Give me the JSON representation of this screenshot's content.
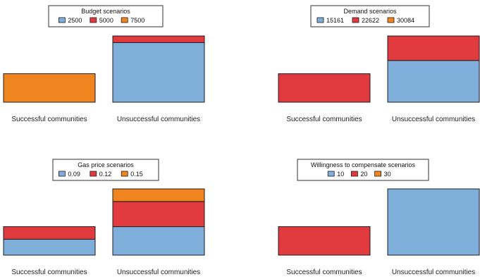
{
  "palette": {
    "blue": "#7eaed9",
    "red": "#e03a3e",
    "orange": "#f0841f"
  },
  "chart_data": [
    {
      "type": "bar",
      "stacked": true,
      "legend_title": "Budget scenarios",
      "legend_placement": "top-center",
      "categories": [
        "Successful communities",
        "Unsuccessful communities"
      ],
      "series": [
        {
          "name": "2500",
          "color": "#7eaed9",
          "values": [
            0,
            0.9
          ]
        },
        {
          "name": "5000",
          "color": "#e03a3e",
          "values": [
            0,
            0.1
          ]
        },
        {
          "name": "7500",
          "color": "#f0841f",
          "values": [
            0.43,
            0
          ]
        }
      ],
      "ylim": [
        0,
        1
      ]
    },
    {
      "type": "bar",
      "stacked": true,
      "legend_title": "Demand scenarios",
      "legend_placement": "top-center",
      "categories": [
        "Successful communities",
        "Unsuccessful communities"
      ],
      "series": [
        {
          "name": "15161",
          "color": "#7eaed9",
          "values": [
            0,
            0.63
          ]
        },
        {
          "name": "22622",
          "color": "#e03a3e",
          "values": [
            0.43,
            0.37
          ]
        },
        {
          "name": "30084",
          "color": "#f0841f",
          "values": [
            0,
            0
          ]
        }
      ],
      "ylim": [
        0,
        1
      ]
    },
    {
      "type": "bar",
      "stacked": true,
      "legend_title": "Gas price scenarios",
      "legend_placement": "top-center",
      "categories": [
        "Successful communities",
        "Unsuccessful communities"
      ],
      "series": [
        {
          "name": "0.09",
          "color": "#7eaed9",
          "values": [
            0.24,
            0.43
          ]
        },
        {
          "name": "0.12",
          "color": "#e03a3e",
          "values": [
            0.19,
            0.38
          ]
        },
        {
          "name": "0.15",
          "color": "#f0841f",
          "values": [
            0,
            0.19
          ]
        }
      ],
      "ylim": [
        0,
        1
      ]
    },
    {
      "type": "bar",
      "stacked": true,
      "legend_title": "Willingness to compensate scenarios",
      "legend_placement": "top-center",
      "categories": [
        "Successful communities",
        "Unsuccessful communities"
      ],
      "series": [
        {
          "name": "10",
          "color": "#7eaed9",
          "values": [
            0,
            1.0
          ]
        },
        {
          "name": "20",
          "color": "#e03a3e",
          "values": [
            0.43,
            0
          ]
        },
        {
          "name": "30",
          "color": "#f0841f",
          "values": [
            0,
            0
          ]
        }
      ],
      "ylim": [
        0,
        1
      ]
    }
  ]
}
